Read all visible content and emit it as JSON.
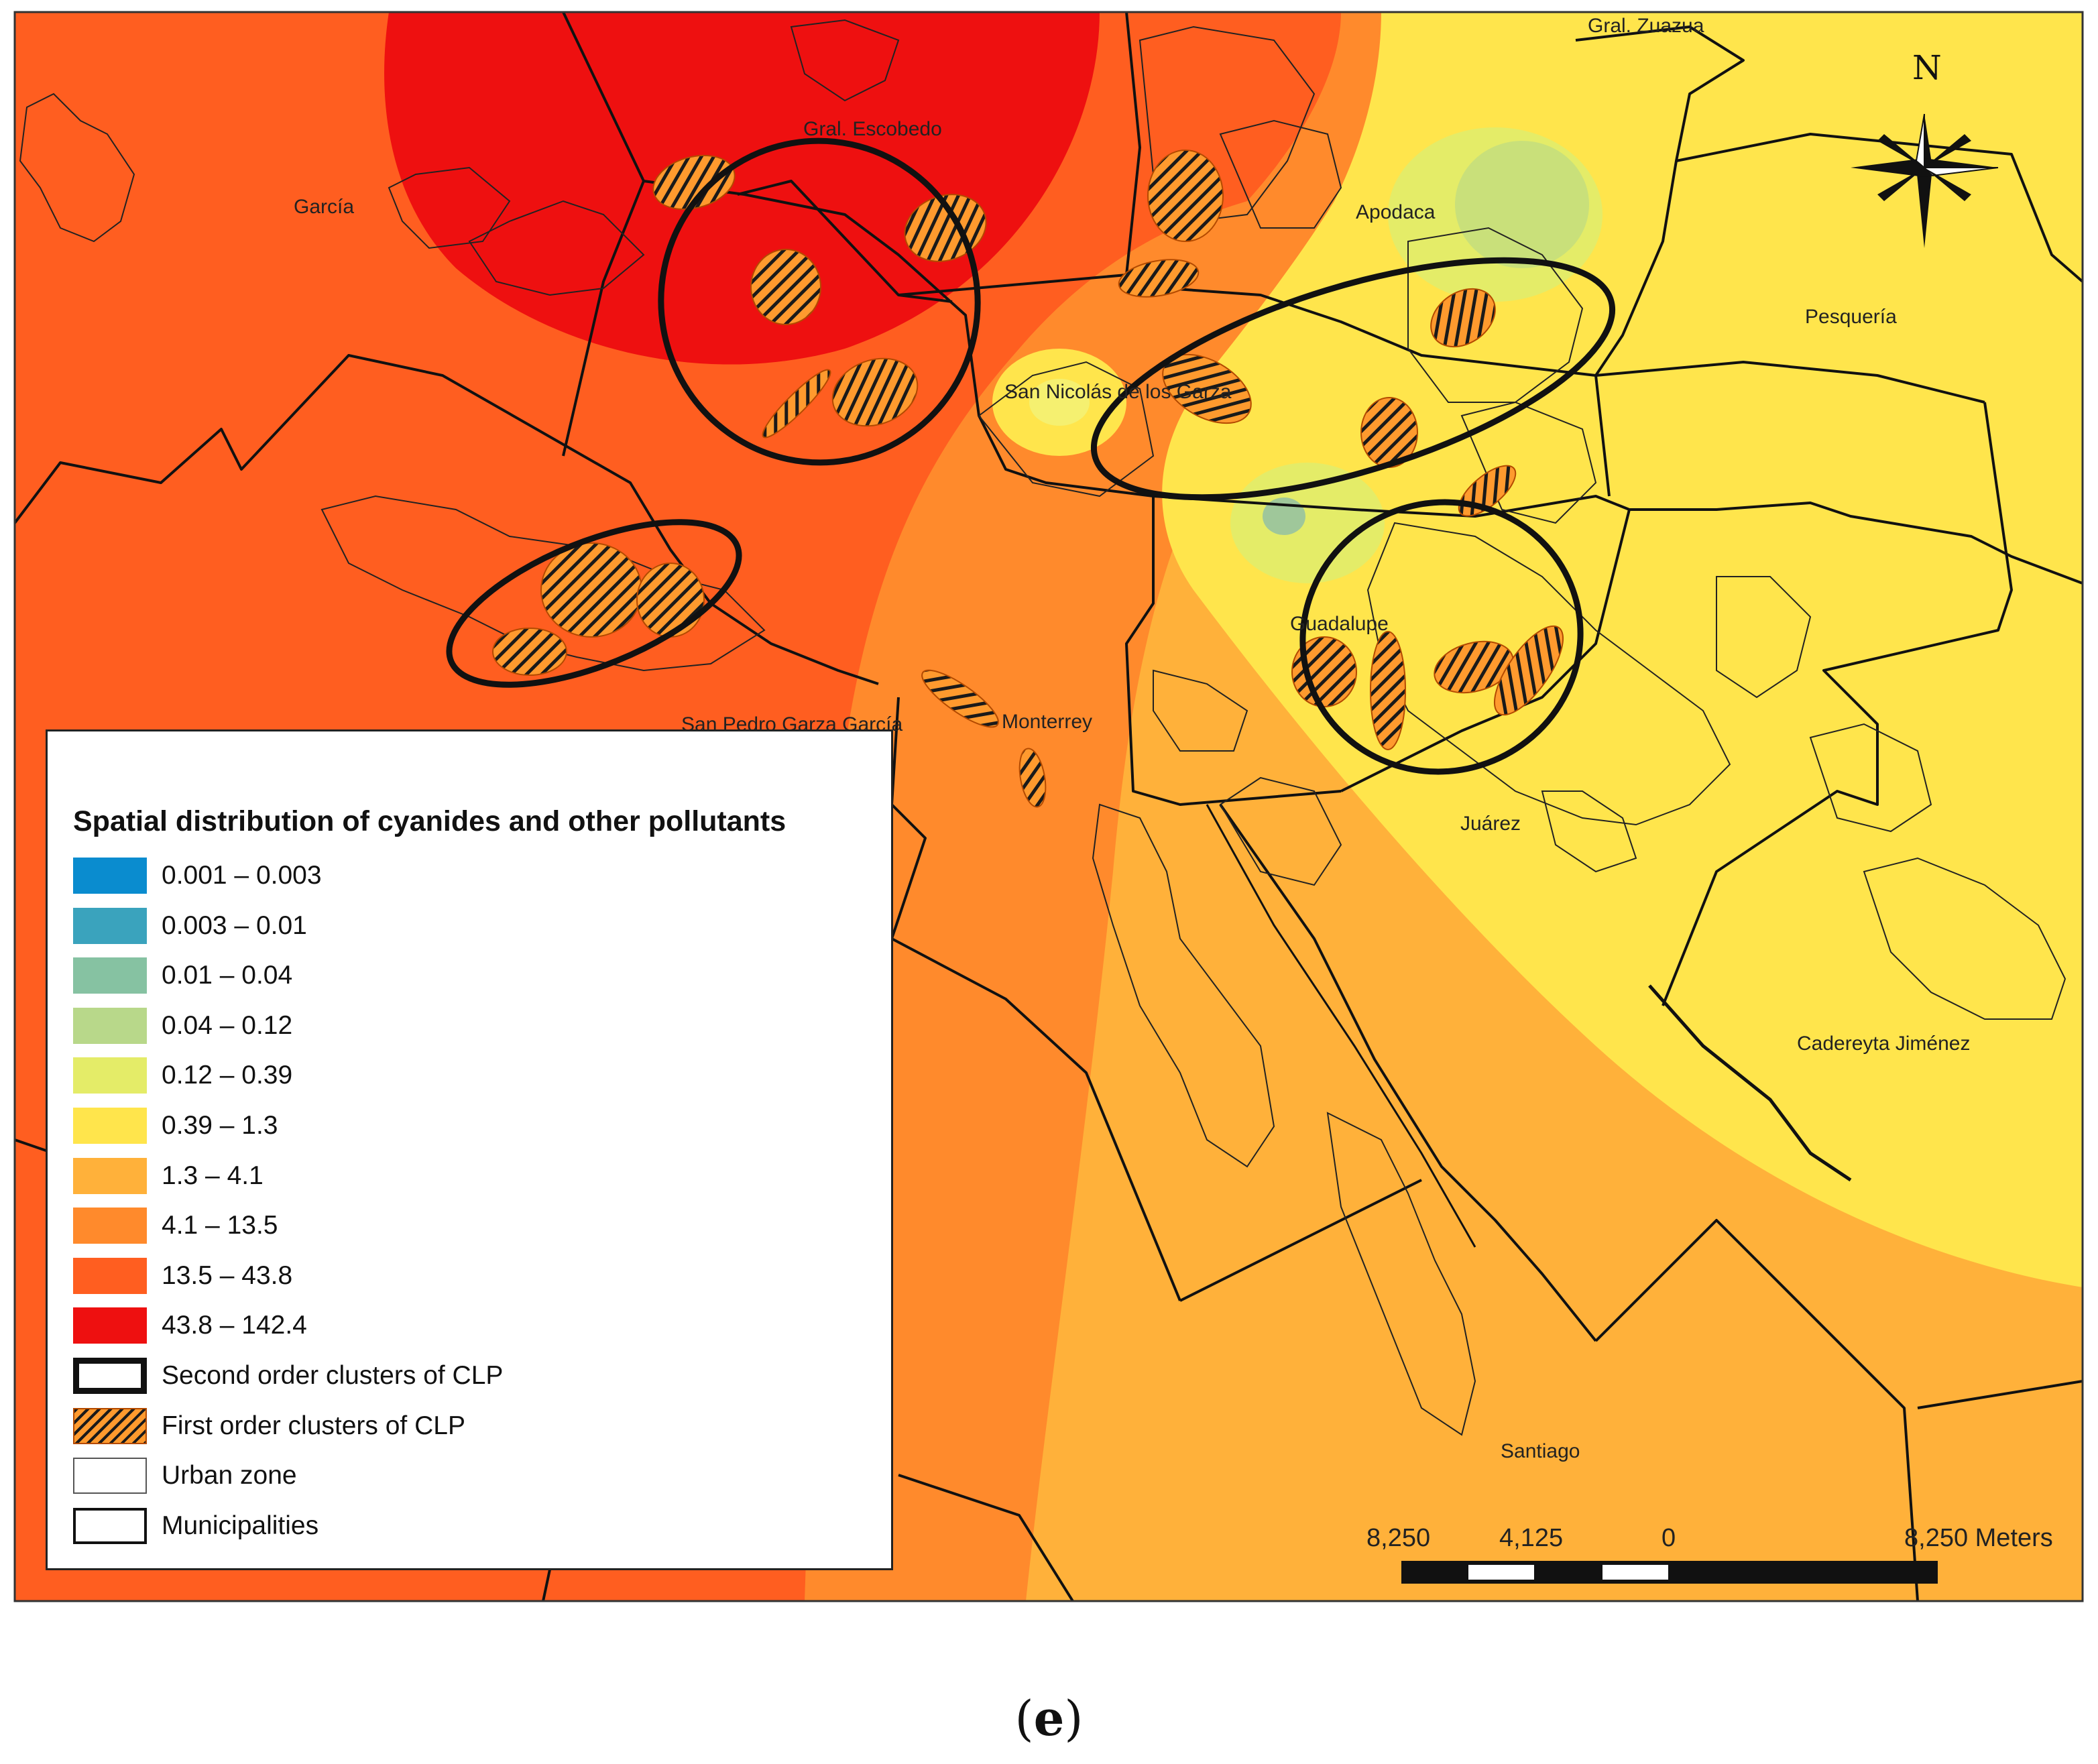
{
  "map": {
    "places": [
      {
        "id": "garcia",
        "label": "García"
      },
      {
        "id": "escobedo",
        "label": "Gral. Escobedo"
      },
      {
        "id": "zuazua",
        "label": "Gral. Zuazua"
      },
      {
        "id": "apodaca",
        "label": "Apodaca"
      },
      {
        "id": "pesqueria",
        "label": "Pesquería"
      },
      {
        "id": "san-nicolas",
        "label": "San Nicolás de los Garza"
      },
      {
        "id": "guadalupe",
        "label": "Guadalupe"
      },
      {
        "id": "san-pedro",
        "label": "San Pedro Garza García"
      },
      {
        "id": "monterrey",
        "label": "Monterrey"
      },
      {
        "id": "juarez",
        "label": "Juárez"
      },
      {
        "id": "cadereyta",
        "label": "Cadereyta Jiménez"
      },
      {
        "id": "santiago",
        "label": "Santiago"
      }
    ],
    "north_label": "N",
    "scale_bar": {
      "ticks": [
        "8,250",
        "4,125",
        "0",
        "8,250 Meters"
      ]
    }
  },
  "legend": {
    "title": "Spatial distribution of cyanides and other pollutants",
    "classes": [
      {
        "label": "0.001 – 0.003",
        "color": "#0a8ccf"
      },
      {
        "label": "0.003 – 0.01",
        "color": "#3aa3bd"
      },
      {
        "label": "0.01 – 0.04",
        "color": "#86c2a2"
      },
      {
        "label": "0.04 – 0.12",
        "color": "#b8d88a"
      },
      {
        "label": "0.12 – 0.39",
        "color": "#e4ec68"
      },
      {
        "label": "0.39 – 1.3",
        "color": "#ffe54c"
      },
      {
        "label": "1.3 – 4.1",
        "color": "#ffb13a"
      },
      {
        "label": "4.1 – 13.5",
        "color": "#ff8a2c"
      },
      {
        "label": "13.5 – 43.8",
        "color": "#ff5e20"
      },
      {
        "label": "43.8 – 142.4",
        "color": "#ee1010"
      }
    ],
    "symbols": [
      {
        "id": "second-order",
        "label": "Second order clusters of CLP"
      },
      {
        "id": "first-order",
        "label": "First order clusters of CLP"
      },
      {
        "id": "urban-zone",
        "label": "Urban zone"
      },
      {
        "id": "municipalities",
        "label": "Municipalities"
      }
    ]
  },
  "caption": {
    "letter": "e"
  }
}
